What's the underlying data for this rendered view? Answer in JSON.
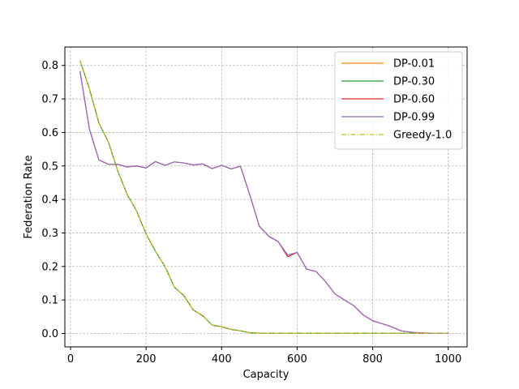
{
  "chart_data": {
    "type": "line",
    "title": "",
    "xlabel": "Capacity",
    "ylabel": "Federation Rate",
    "xlim": [
      -15,
      1050
    ],
    "ylim": [
      -0.04,
      0.855
    ],
    "xticks": [
      0,
      200,
      400,
      600,
      800,
      1000
    ],
    "yticks": [
      0.0,
      0.1,
      0.2,
      0.3,
      0.4,
      0.5,
      0.6,
      0.7,
      0.8
    ],
    "grid": true,
    "legend_position": "top-right",
    "x": [
      25,
      50,
      75,
      100,
      125,
      150,
      175,
      200,
      225,
      250,
      275,
      300,
      325,
      350,
      375,
      400,
      425,
      450,
      475,
      500,
      525,
      550,
      575,
      600,
      625,
      650,
      675,
      700,
      725,
      750,
      775,
      800,
      825,
      850,
      875,
      900,
      925,
      950,
      975,
      1000
    ],
    "series": [
      {
        "name": "DP-0.01",
        "color": "#ff7f0e",
        "dash": "solid",
        "values": [
          0.815,
          0.73,
          0.628,
          0.572,
          0.485,
          0.415,
          0.365,
          0.297,
          0.245,
          0.2,
          0.138,
          0.113,
          0.07,
          0.053,
          0.025,
          0.02,
          0.012,
          0.008,
          0.002,
          0.001,
          0.001,
          0.001,
          0.001,
          0.001,
          0.001,
          0.001,
          0.001,
          0.001,
          0.001,
          0.001,
          0.001,
          0.001,
          0.001,
          0.001,
          0.001,
          0.001,
          0.001,
          0.001,
          0.001,
          0.001
        ]
      },
      {
        "name": "DP-0.30",
        "color": "#2ca02c",
        "dash": "solid",
        "values": [
          0.815,
          0.73,
          0.628,
          0.572,
          0.485,
          0.415,
          0.365,
          0.297,
          0.245,
          0.2,
          0.138,
          0.113,
          0.07,
          0.053,
          0.025,
          0.02,
          0.012,
          0.008,
          0.002,
          0.001,
          0.001,
          0.001,
          0.001,
          0.001,
          0.001,
          0.001,
          0.001,
          0.001,
          0.001,
          0.001,
          0.001,
          0.001,
          0.001,
          0.001,
          0.001,
          0.001,
          0.001,
          0.001,
          0.001,
          0.001
        ]
      },
      {
        "name": "DP-0.60",
        "color": "#d62728",
        "dash": "solid",
        "values": [
          0.783,
          0.61,
          0.518,
          0.505,
          0.505,
          0.497,
          0.5,
          0.494,
          0.513,
          0.502,
          0.512,
          0.509,
          0.503,
          0.506,
          0.492,
          0.502,
          0.491,
          0.499,
          0.412,
          0.32,
          0.29,
          0.274,
          0.229,
          0.242,
          0.192,
          0.185,
          0.155,
          0.118,
          0.1,
          0.083,
          0.055,
          0.038,
          0.029,
          0.02,
          0.008,
          0.004,
          0.001,
          0.001,
          0.001,
          0.001
        ]
      },
      {
        "name": "DP-0.99",
        "color": "#9467bd",
        "dash": "solid",
        "values": [
          0.783,
          0.61,
          0.518,
          0.505,
          0.505,
          0.497,
          0.5,
          0.494,
          0.513,
          0.502,
          0.512,
          0.509,
          0.503,
          0.506,
          0.492,
          0.502,
          0.491,
          0.499,
          0.412,
          0.32,
          0.29,
          0.274,
          0.234,
          0.242,
          0.192,
          0.185,
          0.155,
          0.118,
          0.1,
          0.083,
          0.055,
          0.038,
          0.029,
          0.02,
          0.008,
          0.004,
          0.002,
          0.001,
          0.001,
          0.001
        ]
      },
      {
        "name": "Greedy-1.0",
        "color": "#bcbd22",
        "dash": "dashdot",
        "values": [
          0.815,
          0.73,
          0.628,
          0.572,
          0.485,
          0.415,
          0.365,
          0.297,
          0.245,
          0.2,
          0.138,
          0.113,
          0.07,
          0.053,
          0.025,
          0.02,
          0.012,
          0.008,
          0.002,
          0.001,
          0.001,
          0.001,
          0.001,
          0.001,
          0.001,
          0.001,
          0.001,
          0.001,
          0.001,
          0.001,
          0.001,
          0.001,
          0.001,
          0.001,
          0.001,
          0.001,
          0.001,
          0.001,
          0.001,
          0.001
        ]
      }
    ]
  }
}
